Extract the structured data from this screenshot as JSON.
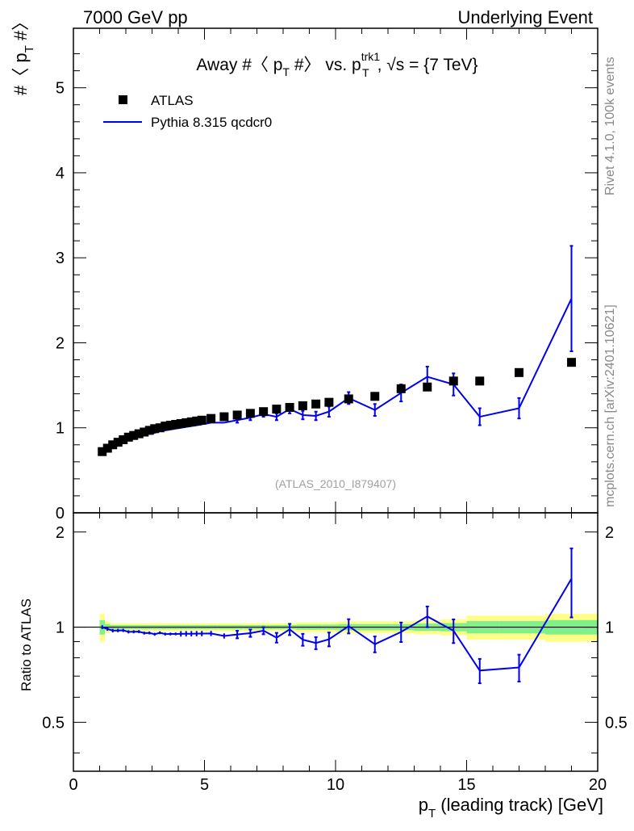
{
  "header": {
    "left": "7000 GeV pp",
    "right": "Underlying Event"
  },
  "sidebar": {
    "rivet": "Rivet 4.1.0,  100k events",
    "mcplots": "mcplots.cern.ch [arXiv:2401.10621]"
  },
  "chart_data": {
    "type": "scatter",
    "title": {
      "prefix": "Away #〈 p",
      "sub1": "T",
      "mid": " #〉 vs. p",
      "sup": "trk1",
      "sub2": "T",
      "suffix": ", √s = {7 TeV}"
    },
    "watermark": "(ATLAS_2010_I879407)",
    "xlabel": {
      "main": "p",
      "sub": "T",
      "rest": " (leading track) [GeV]"
    },
    "ylabel": {
      "pre": "#〈 p",
      "sub": "T",
      "post": " #〉"
    },
    "ratio_ylabel": "Ratio to ATLAS",
    "xlim": [
      0,
      20
    ],
    "ylim": [
      0,
      5.7
    ],
    "ratio_ylim": [
      0.35,
      2.3
    ],
    "x_ticks": [
      0,
      5,
      10,
      15,
      20
    ],
    "x_tick_labels": [
      "0",
      "5",
      "10",
      "15",
      "20"
    ],
    "y_ticks": [
      0,
      1,
      2,
      3,
      4,
      5
    ],
    "y_tick_labels": [
      "0",
      "1",
      "2",
      "3",
      "4",
      "5"
    ],
    "ratio_ticks": [
      0.5,
      1,
      2
    ],
    "ratio_tick_labels": [
      "0.5",
      "1",
      "2"
    ],
    "legend": [
      {
        "label": "ATLAS",
        "marker": "square"
      },
      {
        "label": "Pythia 8.315 qcdcr0",
        "marker": "line"
      }
    ],
    "colors": {
      "data": "#000000",
      "mc": "#0000ee",
      "band_inner": "#7ff08a",
      "band_outer": "#ffff88"
    },
    "x": [
      1.1,
      1.3,
      1.5,
      1.7,
      1.9,
      2.1,
      2.3,
      2.5,
      2.7,
      2.9,
      3.1,
      3.3,
      3.5,
      3.7,
      3.9,
      4.1,
      4.3,
      4.5,
      4.7,
      4.9,
      5.25,
      5.75,
      6.25,
      6.75,
      7.25,
      7.75,
      8.25,
      8.75,
      9.25,
      9.75,
      10.5,
      11.5,
      12.5,
      13.5,
      14.5,
      15.5,
      17.0,
      19.0
    ],
    "atlas": [
      0.72,
      0.76,
      0.8,
      0.83,
      0.86,
      0.89,
      0.91,
      0.93,
      0.95,
      0.97,
      0.99,
      1.0,
      1.02,
      1.03,
      1.04,
      1.05,
      1.06,
      1.07,
      1.08,
      1.09,
      1.11,
      1.13,
      1.15,
      1.17,
      1.19,
      1.22,
      1.24,
      1.26,
      1.28,
      1.3,
      1.34,
      1.37,
      1.46,
      1.48,
      1.55,
      1.55,
      1.65,
      1.77
    ],
    "band_halfwidth_rel": [
      0.07,
      0.03,
      0.02,
      0.02,
      0.02,
      0.02,
      0.02,
      0.02,
      0.02,
      0.02,
      0.02,
      0.02,
      0.02,
      0.02,
      0.02,
      0.02,
      0.02,
      0.02,
      0.02,
      0.02,
      0.02,
      0.02,
      0.02,
      0.02,
      0.02,
      0.02,
      0.02,
      0.025,
      0.025,
      0.025,
      0.03,
      0.03,
      0.03,
      0.035,
      0.04,
      0.06,
      0.06,
      0.07
    ],
    "pythia": [
      0.72,
      0.75,
      0.78,
      0.81,
      0.84,
      0.86,
      0.88,
      0.9,
      0.91,
      0.93,
      0.94,
      0.96,
      0.97,
      0.98,
      0.99,
      1.0,
      1.01,
      1.02,
      1.03,
      1.04,
      1.06,
      1.06,
      1.09,
      1.12,
      1.16,
      1.13,
      1.22,
      1.15,
      1.14,
      1.19,
      1.35,
      1.21,
      1.41,
      1.6,
      1.51,
      1.13,
      1.23,
      2.52
    ],
    "pythia_err": [
      0.01,
      0.01,
      0.01,
      0.01,
      0.01,
      0.01,
      0.01,
      0.01,
      0.01,
      0.01,
      0.01,
      0.01,
      0.01,
      0.01,
      0.01,
      0.02,
      0.02,
      0.02,
      0.02,
      0.02,
      0.02,
      0.02,
      0.03,
      0.03,
      0.03,
      0.04,
      0.05,
      0.05,
      0.05,
      0.06,
      0.07,
      0.07,
      0.1,
      0.12,
      0.13,
      0.1,
      0.12,
      0.62
    ]
  }
}
